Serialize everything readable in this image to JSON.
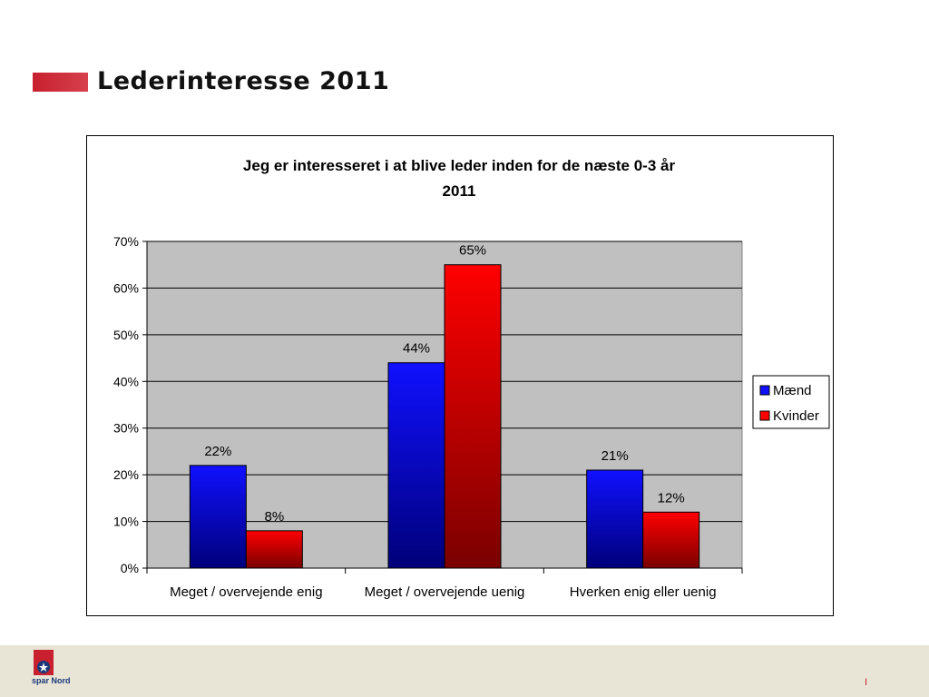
{
  "slide": {
    "title": "Lederinteresse 2011",
    "accent_color": "#c8202f",
    "footer_logo_text": "spar Nord",
    "page_number": "I"
  },
  "chart_data": {
    "type": "bar",
    "title_line1": "Jeg er interesseret i at blive leder inden for de næste 0-3 år",
    "title_line2": "2011",
    "categories": [
      "Meget / overvejende enig",
      "Meget / overvejende uenig",
      "Hverken enig eller uenig"
    ],
    "series": [
      {
        "name": "Mænd",
        "values": [
          22,
          44,
          21
        ],
        "labels": [
          "22%",
          "44%",
          "21%"
        ],
        "color_top": "#1010ff",
        "color_bottom": "#00007a"
      },
      {
        "name": "Kvinder",
        "values": [
          8,
          65,
          12
        ],
        "labels": [
          "8%",
          "65%",
          "12%"
        ],
        "color_top": "#ff0000",
        "color_bottom": "#7a0000"
      }
    ],
    "ylim": [
      0,
      70
    ],
    "yticks": [
      "0%",
      "10%",
      "20%",
      "30%",
      "40%",
      "50%",
      "60%",
      "70%"
    ],
    "grid": true,
    "plot_background": "#c0c0c0",
    "legend_position": "right"
  }
}
